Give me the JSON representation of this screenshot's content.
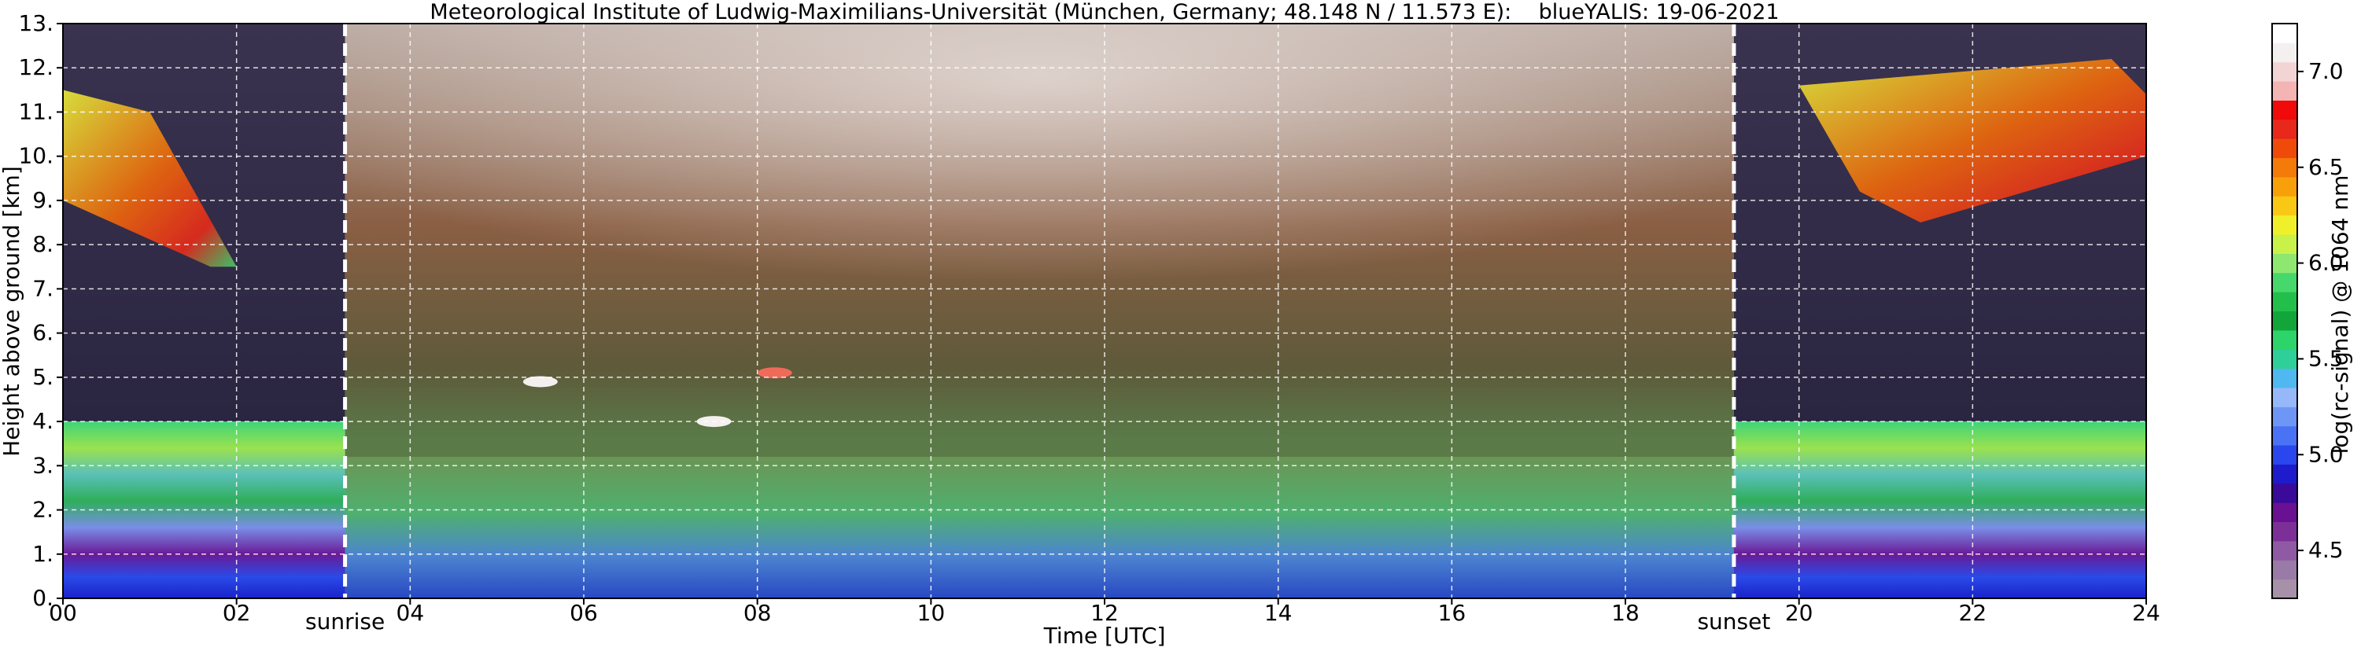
{
  "chart_data": {
    "type": "heatmap",
    "title": "Meteorological Institute of Ludwig-Maximilians-Universität (München, Germany; 48.148 N / 11.573 E):    blueYALIS: 19-06-2021",
    "xlabel": "Time [UTC]",
    "ylabel": "Height above ground [km]",
    "xlim": [
      0,
      24
    ],
    "ylim": [
      0,
      13
    ],
    "x_ticks": [
      0,
      2,
      4,
      6,
      8,
      10,
      12,
      14,
      16,
      18,
      20,
      22,
      24
    ],
    "x_tick_labels": [
      "00",
      "02",
      "04",
      "06",
      "08",
      "10",
      "12",
      "14",
      "16",
      "18",
      "20",
      "22",
      "24"
    ],
    "y_ticks": [
      0,
      1,
      2,
      3,
      4,
      5,
      6,
      7,
      8,
      9,
      10,
      11,
      12,
      13
    ],
    "y_tick_labels": [
      "0.",
      "1.",
      "2.",
      "3.",
      "4.",
      "5.",
      "6.",
      "7.",
      "8.",
      "9.",
      "10.",
      "11.",
      "12.",
      "13."
    ],
    "grid": true,
    "markers": [
      {
        "label": "sunrise",
        "x": 3.25
      },
      {
        "label": "sunset",
        "x": 19.25
      }
    ],
    "colorbar": {
      "label": "log(rc-signal) @ 1064 nm",
      "range": [
        4.25,
        7.25
      ],
      "ticks": [
        4.5,
        5.0,
        5.5,
        6.0,
        6.5,
        7.0
      ],
      "tick_labels": [
        "4.5",
        "5.0",
        "5.5",
        "6.0",
        "6.5",
        "7.0"
      ],
      "colors": [
        "#a691a8",
        "#9a7aa6",
        "#8f5aa3",
        "#7d2f98",
        "#6a1093",
        "#3a0a9a",
        "#1d1bcc",
        "#2a46ee",
        "#4a72f5",
        "#6e96f6",
        "#97b8f8",
        "#4fb8f0",
        "#2fcf9a",
        "#2cd46a",
        "#12a63a",
        "#22c04a",
        "#46d86a",
        "#8ee870",
        "#c8f24a",
        "#f0f02a",
        "#f8c815",
        "#f8a00a",
        "#f47a0a",
        "#f04a0a",
        "#e8281a",
        "#f00a0a",
        "#f4b4b4",
        "#f2d4d4",
        "#f4f0f0",
        "#ffffff"
      ]
    },
    "layers": {
      "boundary_layer_top_km": 4.0,
      "cirrus_morning": {
        "time": [
          0.0,
          2.0
        ],
        "height": [
          7.5,
          11.5
        ]
      },
      "cirrus_evening": {
        "time": [
          20.0,
          24.0
        ],
        "height": [
          8.5,
          12.2
        ]
      },
      "small_clouds": [
        {
          "time": 5.5,
          "height": 4.9
        },
        {
          "time": 7.5,
          "height": 4.0
        },
        {
          "time": 8.2,
          "height": 5.1
        }
      ]
    }
  }
}
